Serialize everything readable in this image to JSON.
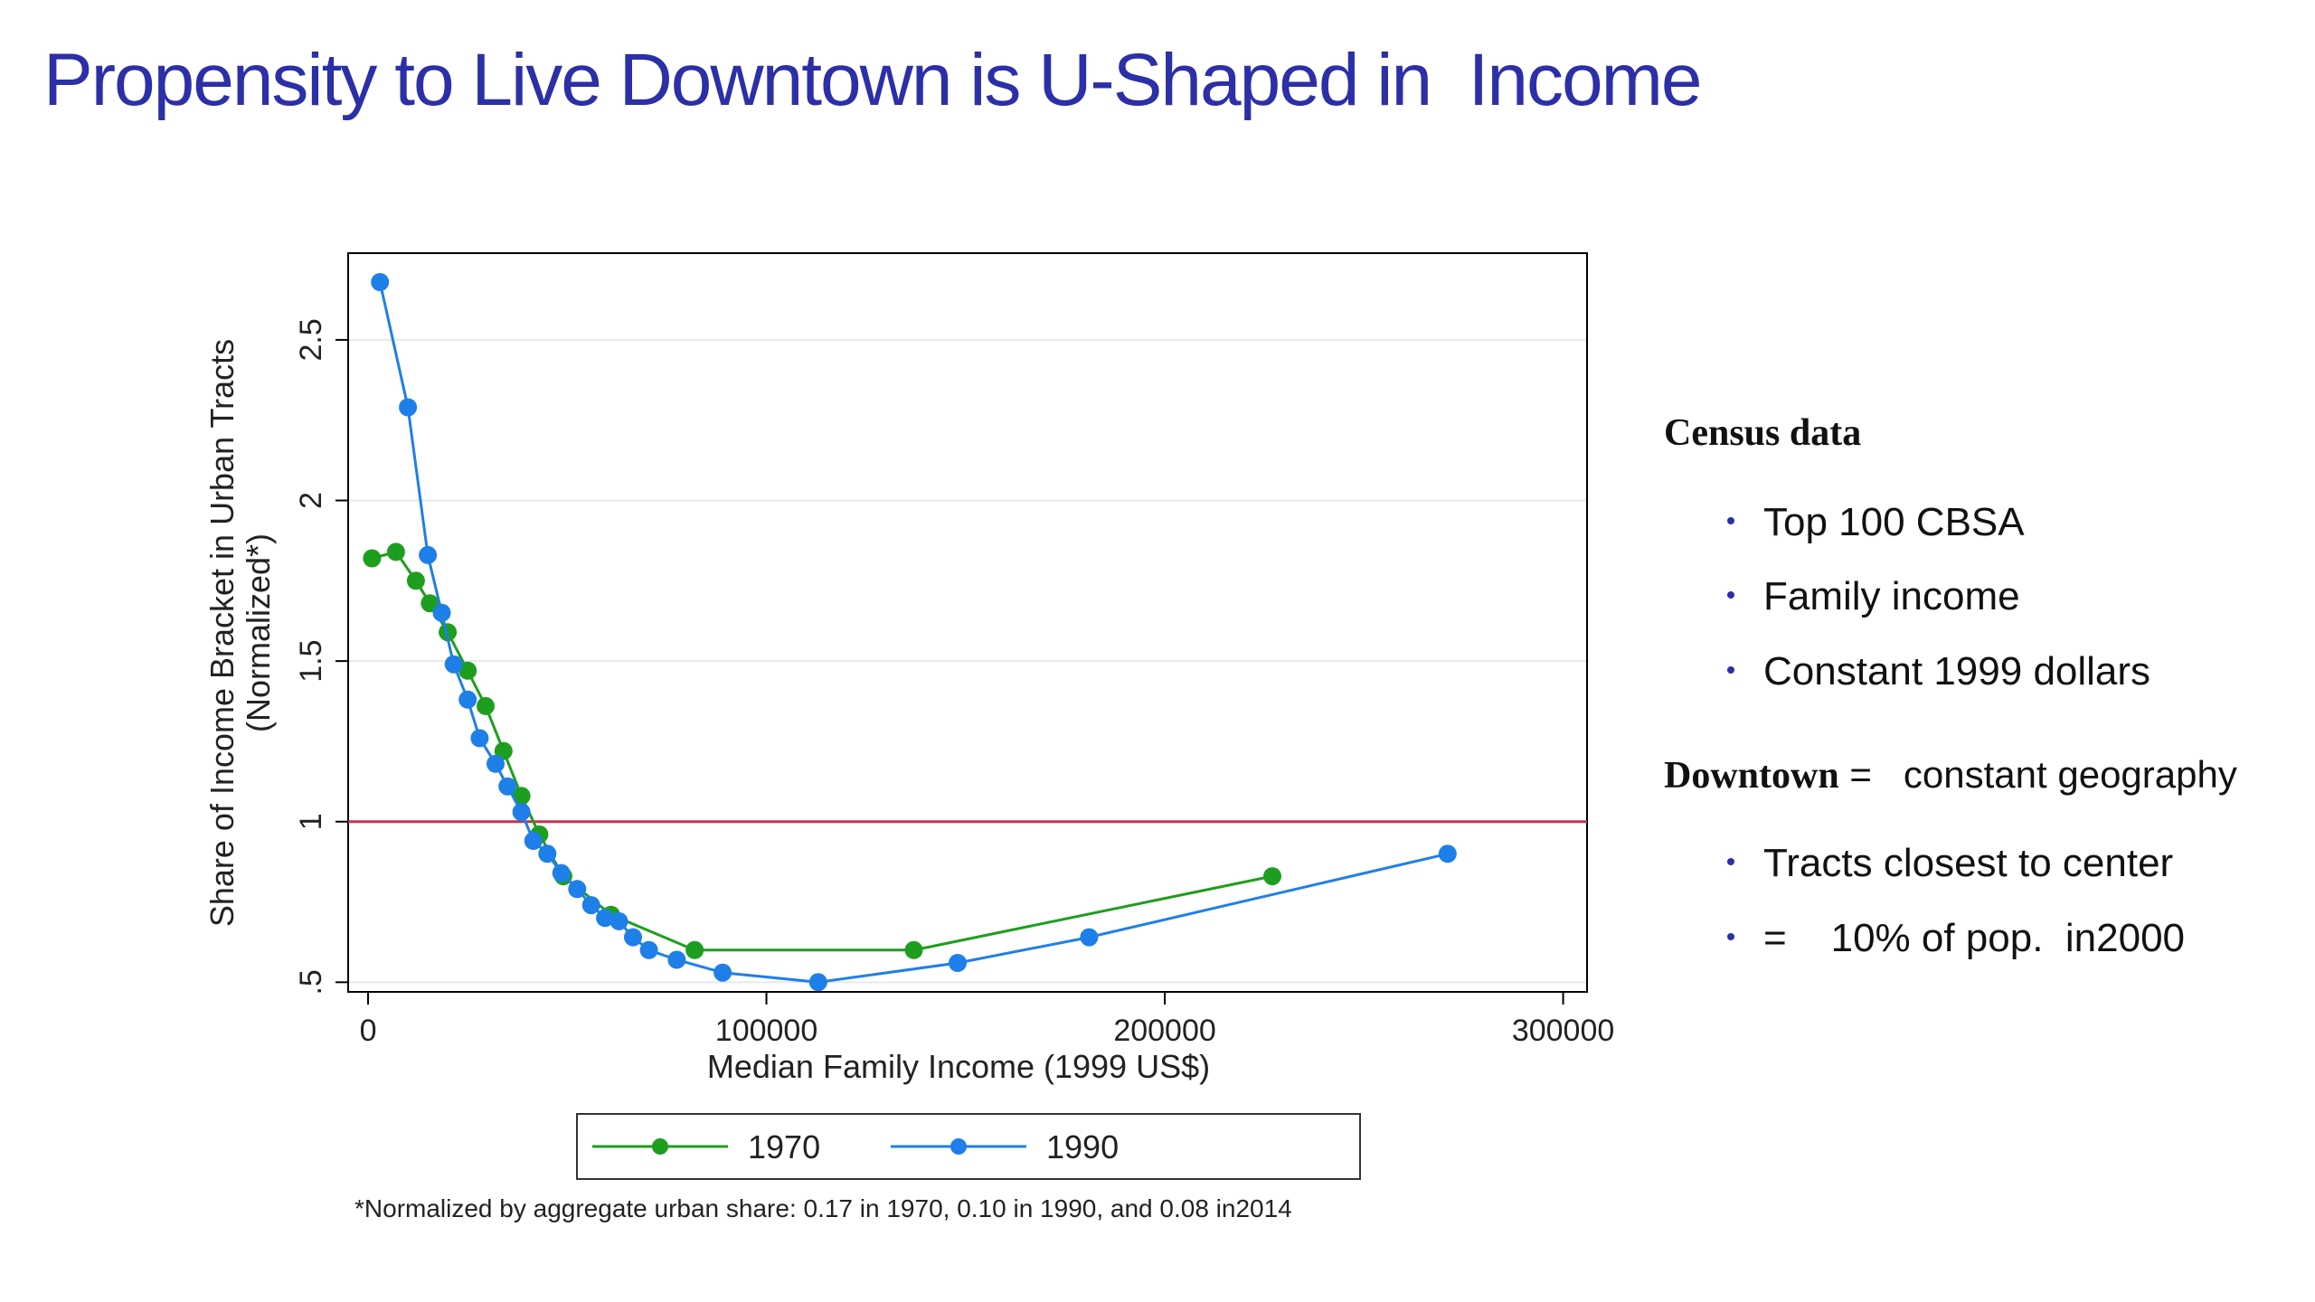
{
  "slide": {
    "title": "Propensity to Live Downtown is U-Shaped in  Income"
  },
  "chart_data": {
    "type": "line",
    "xlabel": "Median Family Income (1999 US$)",
    "ylabel_line1": "Share of Income Bracket in Urban Tracts",
    "ylabel_line2": "(Normalized*)",
    "xlim": [
      -5000,
      306000
    ],
    "ylim": [
      0.47,
      2.77
    ],
    "x_ticks": [
      0,
      100000,
      200000,
      300000
    ],
    "x_tick_labels": [
      "0",
      "100000",
      "200000",
      "300000"
    ],
    "y_ticks": [
      0.5,
      1,
      1.5,
      2,
      2.5
    ],
    "y_tick_labels": [
      ".5",
      "1",
      "1.5",
      "2",
      "2.5"
    ],
    "reference_line": {
      "y": 1,
      "color": "#c8324e"
    },
    "grid": true,
    "legend_position": "bottom",
    "series": [
      {
        "name": "1970",
        "color": "#1e9e1e",
        "points": [
          [
            1000,
            1.82
          ],
          [
            7000,
            1.84
          ],
          [
            12000,
            1.75
          ],
          [
            15500,
            1.68
          ],
          [
            20000,
            1.59
          ],
          [
            25000,
            1.47
          ],
          [
            29500,
            1.36
          ],
          [
            34000,
            1.22
          ],
          [
            38500,
            1.08
          ],
          [
            43000,
            0.96
          ],
          [
            49000,
            0.83
          ],
          [
            61000,
            0.71
          ],
          [
            82000,
            0.6
          ],
          [
            137000,
            0.6
          ],
          [
            227000,
            0.83
          ]
        ]
      },
      {
        "name": "1990",
        "color": "#1f7fe8",
        "points": [
          [
            3000,
            2.68
          ],
          [
            10000,
            2.29
          ],
          [
            15000,
            1.83
          ],
          [
            18500,
            1.65
          ],
          [
            21500,
            1.49
          ],
          [
            25000,
            1.38
          ],
          [
            28000,
            1.26
          ],
          [
            32000,
            1.18
          ],
          [
            35000,
            1.11
          ],
          [
            38500,
            1.03
          ],
          [
            41500,
            0.94
          ],
          [
            45000,
            0.9
          ],
          [
            48500,
            0.84
          ],
          [
            52500,
            0.79
          ],
          [
            56000,
            0.74
          ],
          [
            59500,
            0.7
          ],
          [
            63000,
            0.69
          ],
          [
            66500,
            0.64
          ],
          [
            70500,
            0.6
          ],
          [
            77500,
            0.57
          ],
          [
            89000,
            0.53
          ],
          [
            113000,
            0.5
          ],
          [
            148000,
            0.56
          ],
          [
            181000,
            0.64
          ],
          [
            271000,
            0.9
          ]
        ]
      }
    ],
    "footnote": "*Normalized by aggregate urban share: 0.17 in 1970, 0.10  in 1990, and 0.08 in2014"
  },
  "side_panel": {
    "heading1": "Census data",
    "bullets1": [
      "Top 100 CBSA",
      "Family income",
      "Constant 1999 dollars"
    ],
    "heading2_bold": "Downtown",
    "heading2_rest": " =   constant geography",
    "bullets2": [
      "Tracts closest  to center",
      "=    10% of pop.  in2000"
    ]
  }
}
